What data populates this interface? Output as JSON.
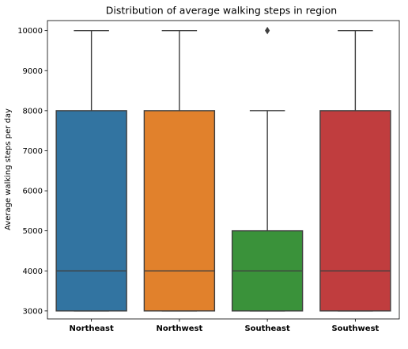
{
  "chart_data": {
    "type": "box",
    "title": "Distribution of average walking steps in region",
    "xlabel": "",
    "ylabel": "Average walking steps per day",
    "ylim": [
      2800,
      10250
    ],
    "yticks": [
      3000,
      4000,
      5000,
      6000,
      7000,
      8000,
      9000,
      10000
    ],
    "yticks_labels": [
      "3000",
      "4000",
      "5000",
      "6000",
      "7000",
      "8000",
      "9000",
      "10000"
    ],
    "grid": false,
    "categories": [
      "Northeast",
      "Northwest",
      "Southeast",
      "Southwest"
    ],
    "boxes": [
      {
        "category": "Northeast",
        "color": "#3274a1",
        "whisker_low": 3000,
        "q1": 3000,
        "median": 4000,
        "q3": 8000,
        "whisker_high": 10000,
        "outliers": []
      },
      {
        "category": "Northwest",
        "color": "#e1812c",
        "whisker_low": 3000,
        "q1": 3000,
        "median": 4000,
        "q3": 8000,
        "whisker_high": 10000,
        "outliers": []
      },
      {
        "category": "Southeast",
        "color": "#3a923a",
        "whisker_low": 3000,
        "q1": 3000,
        "median": 4000,
        "q3": 5000,
        "whisker_high": 8000,
        "outliers": [
          10000
        ]
      },
      {
        "category": "Southwest",
        "color": "#c03d3e",
        "whisker_low": 3000,
        "q1": 3000,
        "median": 4000,
        "q3": 8000,
        "whisker_high": 10000,
        "outliers": []
      }
    ]
  }
}
